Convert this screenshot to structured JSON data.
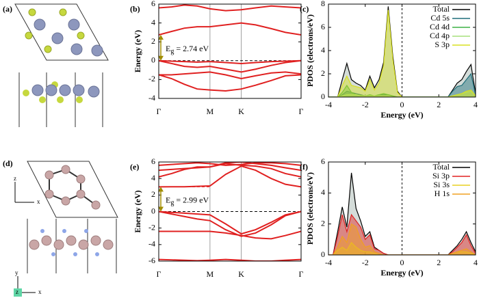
{
  "structure_panels": [
    {
      "label": "(a)"
    },
    {
      "label": "(d)",
      "axis_labels_top": [
        "z",
        "x"
      ],
      "axis_labels_bottom": [
        "y",
        "z",
        "x"
      ]
    }
  ],
  "chart_data": [
    {
      "type": "band",
      "panel_label": "(b)",
      "y_label": "Energy (eV)",
      "color": "#e02020",
      "x": [
        0,
        0.09,
        0.18,
        0.27,
        0.36,
        0.47,
        0.58,
        0.68,
        0.79,
        0.89,
        1
      ],
      "xlim": [
        0,
        1
      ],
      "ylim": [
        -4,
        6
      ],
      "yticks": [
        -4,
        -2,
        0,
        2,
        4,
        6
      ],
      "xticks": [
        {
          "value": 0,
          "label": "Γ"
        },
        {
          "value": 0.36,
          "label": "M"
        },
        {
          "value": 0.58,
          "label": "K"
        },
        {
          "value": 1,
          "label": "Γ"
        }
      ],
      "hline": 0,
      "band_gap": 2.74,
      "gap_dashed": false,
      "annotation": {
        "symbol": "E",
        "subscript": "g",
        "text": " = 2.74 eV"
      },
      "series": [
        {
          "values": [
            2.74,
            3.1,
            3.45,
            3.6,
            3.6,
            3.8,
            4.0,
            3.8,
            3.4,
            3.0,
            2.74
          ]
        },
        {
          "values": [
            5.6,
            5.7,
            5.9,
            5.8,
            5.5,
            5.3,
            5.4,
            5.6,
            5.8,
            5.7,
            5.6
          ]
        },
        {
          "values": [
            0,
            -0.05,
            -0.1,
            -0.15,
            -0.1,
            -0.2,
            -0.3,
            -0.2,
            -0.1,
            -0.05,
            0
          ]
        },
        {
          "values": [
            0,
            -0.3,
            -0.6,
            -0.7,
            -0.6,
            -0.9,
            -1.2,
            -0.9,
            -0.5,
            -0.2,
            0
          ]
        },
        {
          "values": [
            -1.5,
            -1.5,
            -1.4,
            -1.3,
            -1.2,
            -1.5,
            -1.9,
            -1.6,
            -1.3,
            -1.2,
            -1.4
          ]
        },
        {
          "values": [
            -1.5,
            -1.9,
            -2.5,
            -3.0,
            -3.1,
            -3.2,
            -3.0,
            -2.6,
            -2.1,
            -1.6,
            -1.5
          ]
        }
      ]
    },
    {
      "type": "area",
      "panel_label": "(c)",
      "x_label": "Energy (eV)",
      "y_label": "PDOS (electrons/eV)",
      "x": [
        -4,
        -3.75,
        -3.5,
        -3.25,
        -3,
        -2.75,
        -2.5,
        -2.25,
        -2,
        -1.75,
        -1.5,
        -1.25,
        -1,
        -0.75,
        -0.5,
        -0.25,
        0,
        0.25,
        0.5,
        0.75,
        1,
        1.25,
        1.5,
        1.75,
        2,
        2.25,
        2.5,
        2.75,
        3,
        3.25,
        3.5,
        3.75,
        4
      ],
      "xlim": [
        -4,
        4
      ],
      "xticks": [
        -4,
        -2,
        0,
        2,
        4
      ],
      "ylim": [
        0,
        8
      ],
      "yticks": [
        0,
        2,
        4,
        6,
        8
      ],
      "vline": 0,
      "legend": "top-right",
      "series": [
        {
          "name": "Total",
          "color": "#000000",
          "values": [
            0,
            0,
            0,
            1.5,
            2.9,
            1.5,
            1.2,
            1.0,
            0.6,
            1.8,
            0.8,
            1.5,
            3.0,
            7.8,
            3.5,
            0.5,
            0,
            0,
            0,
            0,
            0,
            0,
            0,
            0,
            0,
            0,
            0,
            0.6,
            1.2,
            1.5,
            2.2,
            2.8,
            0.3
          ]
        },
        {
          "name": "Cd 5s",
          "color": "#1f6f7a",
          "values": [
            0,
            0,
            0,
            0.2,
            0.5,
            0.4,
            0.3,
            0.2,
            0.1,
            0.1,
            0.1,
            0.2,
            0.2,
            0.2,
            0.1,
            0,
            0,
            0,
            0,
            0,
            0,
            0,
            0,
            0,
            0,
            0,
            0,
            0.5,
            0.9,
            1.0,
            1.5,
            2.0,
            0.2
          ]
        },
        {
          "name": "Cd 4d",
          "color": "#3cb043",
          "values": [
            0,
            0,
            0,
            0.4,
            1.0,
            0.4,
            0.2,
            0.15,
            0.1,
            0.2,
            0.1,
            0.2,
            0.3,
            0.2,
            0.1,
            0,
            0,
            0,
            0,
            0,
            0,
            0,
            0,
            0,
            0,
            0,
            0,
            0,
            0,
            0,
            0,
            0,
            0
          ]
        },
        {
          "name": "Cd 4p",
          "color": "#a6e07a",
          "values": [
            0,
            0,
            0,
            0.1,
            0.2,
            0.2,
            0.2,
            0.1,
            0.1,
            0.1,
            0.1,
            0.1,
            0.1,
            0.1,
            0,
            0,
            0,
            0,
            0,
            0,
            0,
            0,
            0,
            0,
            0,
            0,
            0,
            0.1,
            0.2,
            0.3,
            0.4,
            0.5,
            0.1
          ]
        },
        {
          "name": "S 3p",
          "color": "#d8e020",
          "values": [
            0,
            0,
            0,
            1.0,
            1.8,
            1.0,
            0.9,
            0.8,
            0.5,
            1.5,
            0.6,
            1.2,
            2.7,
            7.5,
            3.2,
            0.4,
            0,
            0,
            0,
            0,
            0,
            0,
            0,
            0,
            0,
            0,
            0,
            0.1,
            0.2,
            0.3,
            0.5,
            0.6,
            0.1
          ]
        }
      ]
    },
    {
      "type": "band",
      "panel_label": "(e)",
      "y_label": "Energy (eV)",
      "color": "#e02020",
      "x": [
        0,
        0.09,
        0.18,
        0.27,
        0.36,
        0.47,
        0.58,
        0.68,
        0.79,
        0.89,
        1
      ],
      "xlim": [
        0,
        1
      ],
      "ylim": [
        -6,
        6
      ],
      "yticks": [
        -6,
        -4,
        -2,
        0,
        2,
        4,
        6
      ],
      "xticks": [
        {
          "value": 0,
          "label": "Γ"
        },
        {
          "value": 0.36,
          "label": "M"
        },
        {
          "value": 0.58,
          "label": "K"
        },
        {
          "value": 1,
          "label": "Γ"
        }
      ],
      "hline": 0,
      "band_gap": 2.99,
      "gap_dashed": true,
      "annotation": {
        "symbol": "E",
        "subscript": "g",
        "text": " = 2.99 eV"
      },
      "series": [
        {
          "values": [
            2.99,
            3.0,
            3.0,
            3.05,
            3.1,
            4.5,
            5.5,
            5.0,
            4.0,
            3.3,
            2.99
          ]
        },
        {
          "values": [
            4.2,
            4.6,
            5.1,
            5.4,
            5.4,
            5.8,
            5.6,
            5.5,
            5.2,
            4.6,
            4.2
          ]
        },
        {
          "values": [
            5.0,
            5.1,
            5.2,
            5.3,
            5.4,
            5.9,
            6.0,
            5.8,
            5.6,
            5.3,
            5.0
          ]
        },
        {
          "values": [
            5.6,
            5.7,
            5.8,
            5.9,
            5.8,
            5.6,
            5.7,
            5.9,
            5.9,
            5.8,
            5.6
          ]
        },
        {
          "values": [
            0,
            -0.1,
            -0.2,
            -0.3,
            -0.4,
            -1.5,
            -2.7,
            -2.2,
            -1.3,
            -0.4,
            0
          ]
        },
        {
          "values": [
            0,
            -0.3,
            -0.6,
            -0.9,
            -1.1,
            -2.2,
            -3.0,
            -2.6,
            -1.6,
            -0.5,
            0
          ]
        },
        {
          "values": [
            -2.4,
            -2.4,
            -2.4,
            -2.4,
            -2.4,
            -2.6,
            -2.9,
            -3.2,
            -3.3,
            -2.9,
            -2.4
          ]
        },
        {
          "values": [
            -5.8,
            -5.85,
            -5.9,
            -5.95,
            -5.9,
            -5.8,
            -5.9,
            -6,
            -6,
            -5.9,
            -5.8
          ]
        }
      ]
    },
    {
      "type": "area",
      "panel_label": "(f)",
      "x_label": "Energy (eV)",
      "y_label": "PDOS (electrons/eV)",
      "x": [
        -4,
        -3.75,
        -3.5,
        -3.25,
        -3,
        -2.75,
        -2.5,
        -2.25,
        -2,
        -1.75,
        -1.5,
        -1.25,
        -1,
        -0.75,
        -0.5,
        -0.25,
        0,
        0.25,
        0.5,
        0.75,
        1,
        1.25,
        1.5,
        1.75,
        2,
        2.25,
        2.5,
        2.75,
        3,
        3.25,
        3.5,
        3.75,
        4
      ],
      "xlim": [
        -4,
        4
      ],
      "xticks": [
        -4,
        -2,
        0,
        2,
        4
      ],
      "ylim": [
        0,
        6
      ],
      "yticks": [
        0,
        2,
        4,
        6
      ],
      "vline": 0,
      "legend": "top-right",
      "series": [
        {
          "name": "Total",
          "color": "#000000",
          "values": [
            0,
            0,
            1.5,
            3.1,
            1.8,
            5.3,
            3.0,
            2.2,
            1.2,
            1.5,
            0.5,
            0.3,
            0.1,
            0,
            0,
            0,
            0,
            0,
            0,
            0,
            0,
            0,
            0,
            0,
            0,
            0,
            0,
            0.3,
            0.6,
            1.0,
            1.5,
            0.8,
            0.2
          ]
        },
        {
          "name": "Si 3p",
          "color": "#e02020",
          "values": [
            0,
            0,
            1.2,
            2.6,
            1.5,
            2.6,
            2.2,
            1.8,
            1.0,
            1.3,
            0.4,
            0.3,
            0.1,
            0,
            0,
            0,
            0,
            0,
            0,
            0,
            0,
            0,
            0,
            0,
            0,
            0,
            0,
            0.2,
            0.5,
            0.8,
            1.3,
            0.6,
            0.1
          ]
        },
        {
          "name": "Si 3s",
          "color": "#e8d020",
          "values": [
            0,
            0,
            0.3,
            0.5,
            0.3,
            0.8,
            0.5,
            0.3,
            0.2,
            0.2,
            0.1,
            0,
            0,
            0,
            0,
            0,
            0,
            0,
            0,
            0,
            0,
            0,
            0,
            0,
            0,
            0,
            0,
            0.1,
            0.2,
            0.2,
            0.2,
            0.1,
            0
          ]
        },
        {
          "name": "H 1s",
          "color": "#f0a020",
          "values": [
            0,
            0,
            0.5,
            1.2,
            0.8,
            2.0,
            1.8,
            1.0,
            0.5,
            0.6,
            0.2,
            0.1,
            0,
            0,
            0,
            0,
            0,
            0,
            0,
            0,
            0,
            0,
            0,
            0,
            0,
            0,
            0,
            0.1,
            0.2,
            0.3,
            0.4,
            0.2,
            0
          ]
        }
      ]
    }
  ]
}
